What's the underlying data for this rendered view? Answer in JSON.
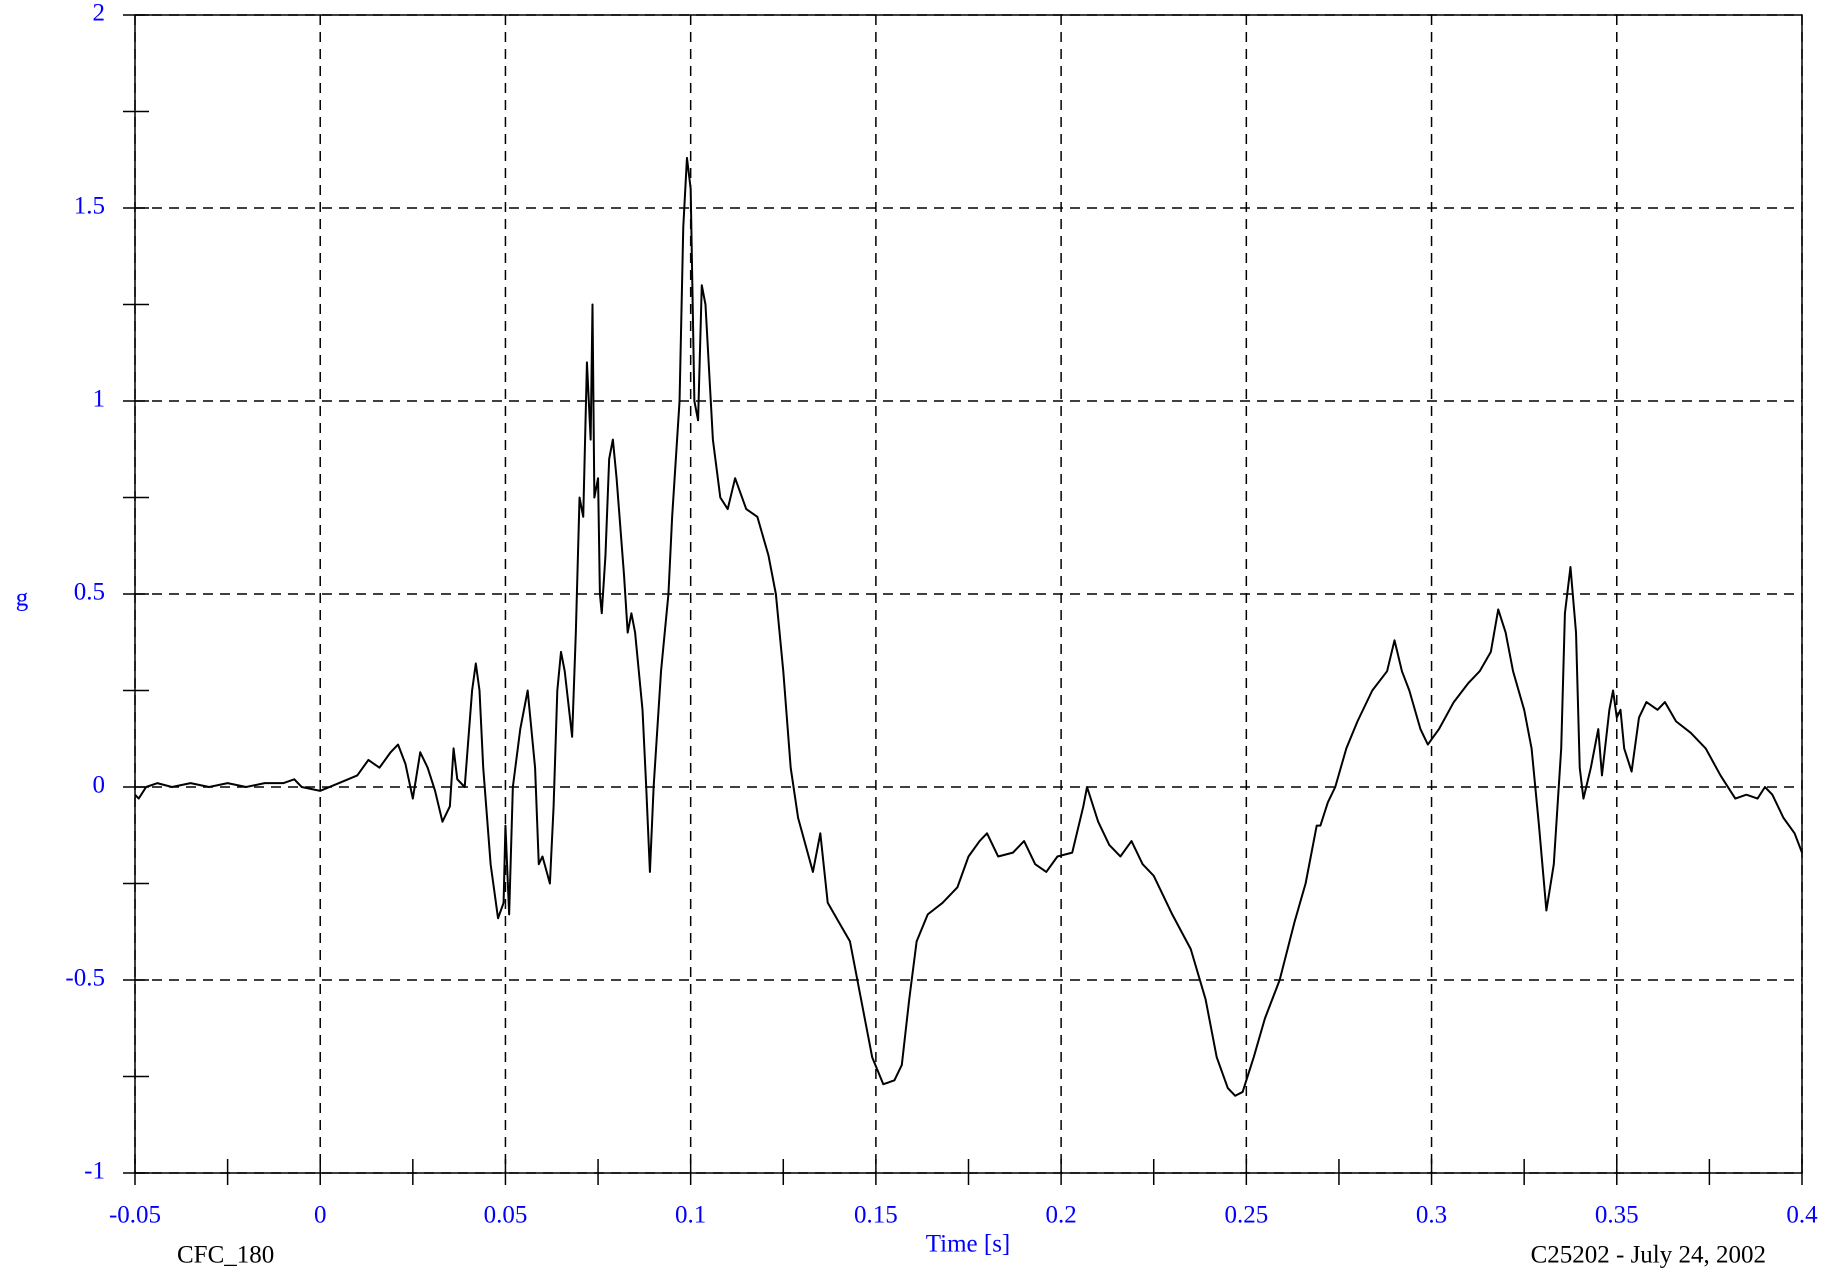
{
  "chart_data": {
    "type": "line",
    "x_label": "Time [s]",
    "y_label": "g",
    "footer_left": "CFC_180",
    "footer_right": "C25202 - July 24, 2002",
    "xlim": [
      -0.05,
      0.4
    ],
    "ylim": [
      -1,
      2
    ],
    "xticks": [
      -0.05,
      0,
      0.05,
      0.1,
      0.15,
      0.2,
      0.25,
      0.3,
      0.35,
      0.4
    ],
    "yticks": [
      -1,
      -0.5,
      0,
      0.5,
      1,
      1.5,
      2
    ],
    "grid": true,
    "color": "#000000",
    "label_color": "#0000ff",
    "x": [
      -0.05,
      -0.049,
      -0.047,
      -0.044,
      -0.04,
      -0.035,
      -0.03,
      -0.025,
      -0.02,
      -0.015,
      -0.01,
      -0.007,
      -0.005,
      0,
      0.005,
      0.01,
      0.013,
      0.016,
      0.019,
      0.021,
      0.023,
      0.025,
      0.027,
      0.029,
      0.031,
      0.033,
      0.035,
      0.036,
      0.037,
      0.039,
      0.041,
      0.042,
      0.043,
      0.044,
      0.046,
      0.048,
      0.0495,
      0.05,
      0.051,
      0.052,
      0.054,
      0.056,
      0.058,
      0.059,
      0.06,
      0.062,
      0.063,
      0.064,
      0.065,
      0.066,
      0.068,
      0.069,
      0.07,
      0.071,
      0.072,
      0.073,
      0.0735,
      0.074,
      0.075,
      0.0755,
      0.076,
      0.077,
      0.078,
      0.079,
      0.08,
      0.082,
      0.083,
      0.084,
      0.085,
      0.087,
      0.088,
      0.089,
      0.09,
      0.092,
      0.094,
      0.095,
      0.097,
      0.098,
      0.099,
      0.1,
      0.101,
      0.102,
      0.103,
      0.104,
      0.106,
      0.108,
      0.11,
      0.112,
      0.115,
      0.118,
      0.121,
      0.123,
      0.125,
      0.127,
      0.129,
      0.131,
      0.133,
      0.135,
      0.137,
      0.14,
      0.143,
      0.146,
      0.149,
      0.152,
      0.155,
      0.157,
      0.159,
      0.161,
      0.164,
      0.168,
      0.172,
      0.175,
      0.178,
      0.18,
      0.183,
      0.187,
      0.19,
      0.193,
      0.196,
      0.199,
      0.203,
      0.206,
      0.207,
      0.21,
      0.213,
      0.216,
      0.219,
      0.222,
      0.225,
      0.23,
      0.235,
      0.239,
      0.242,
      0.245,
      0.247,
      0.249,
      0.252,
      0.255,
      0.259,
      0.263,
      0.266,
      0.269,
      0.27,
      0.272,
      0.274,
      0.277,
      0.28,
      0.284,
      0.288,
      0.29,
      0.292,
      0.294,
      0.297,
      0.299,
      0.302,
      0.306,
      0.31,
      0.313,
      0.316,
      0.318,
      0.32,
      0.322,
      0.325,
      0.327,
      0.329,
      0.331,
      0.333,
      0.335,
      0.336,
      0.3375,
      0.339,
      0.34,
      0.341,
      0.343,
      0.345,
      0.346,
      0.348,
      0.349,
      0.35,
      0.351,
      0.352,
      0.354,
      0.356,
      0.358,
      0.361,
      0.363,
      0.366,
      0.37,
      0.374,
      0.378,
      0.382,
      0.385,
      0.388,
      0.39,
      0.392,
      0.395,
      0.398,
      0.4
    ],
    "values": [
      -0.02,
      -0.03,
      0.0,
      0.01,
      0.0,
      0.01,
      0.0,
      0.01,
      0.0,
      0.01,
      0.01,
      0.02,
      0.0,
      -0.01,
      0.01,
      0.03,
      0.07,
      0.05,
      0.09,
      0.11,
      0.06,
      -0.03,
      0.09,
      0.05,
      -0.01,
      -0.09,
      -0.05,
      0.1,
      0.02,
      0.0,
      0.25,
      0.32,
      0.25,
      0.05,
      -0.2,
      -0.34,
      -0.3,
      -0.1,
      -0.33,
      0.0,
      0.15,
      0.25,
      0.05,
      -0.2,
      -0.18,
      -0.25,
      -0.05,
      0.25,
      0.35,
      0.3,
      0.13,
      0.4,
      0.75,
      0.7,
      1.1,
      0.9,
      1.25,
      0.75,
      0.8,
      0.5,
      0.45,
      0.6,
      0.85,
      0.9,
      0.8,
      0.55,
      0.4,
      0.45,
      0.4,
      0.2,
      0.0,
      -0.22,
      0.0,
      0.3,
      0.5,
      0.7,
      1.0,
      1.45,
      1.63,
      1.55,
      1.0,
      0.95,
      1.3,
      1.25,
      0.9,
      0.75,
      0.72,
      0.8,
      0.72,
      0.7,
      0.6,
      0.5,
      0.3,
      0.05,
      -0.08,
      -0.15,
      -0.22,
      -0.12,
      -0.3,
      -0.35,
      -0.4,
      -0.55,
      -0.7,
      -0.77,
      -0.76,
      -0.72,
      -0.55,
      -0.4,
      -0.33,
      -0.3,
      -0.26,
      -0.18,
      -0.14,
      -0.12,
      -0.18,
      -0.17,
      -0.14,
      -0.2,
      -0.22,
      -0.18,
      -0.17,
      -0.05,
      0.0,
      -0.09,
      -0.15,
      -0.18,
      -0.14,
      -0.2,
      -0.23,
      -0.33,
      -0.42,
      -0.55,
      -0.7,
      -0.78,
      -0.8,
      -0.79,
      -0.7,
      -0.6,
      -0.5,
      -0.35,
      -0.25,
      -0.1,
      -0.1,
      -0.04,
      0.0,
      0.1,
      0.17,
      0.25,
      0.3,
      0.38,
      0.3,
      0.25,
      0.15,
      0.11,
      0.15,
      0.22,
      0.27,
      0.3,
      0.35,
      0.46,
      0.4,
      0.3,
      0.2,
      0.1,
      -0.1,
      -0.32,
      -0.2,
      0.1,
      0.45,
      0.57,
      0.4,
      0.05,
      -0.03,
      0.05,
      0.15,
      0.03,
      0.2,
      0.25,
      0.18,
      0.2,
      0.1,
      0.04,
      0.18,
      0.22,
      0.2,
      0.22,
      0.17,
      0.14,
      0.1,
      0.03,
      -0.03,
      -0.02,
      -0.03,
      0.0,
      -0.02,
      -0.08,
      -0.12,
      -0.17
    ]
  }
}
